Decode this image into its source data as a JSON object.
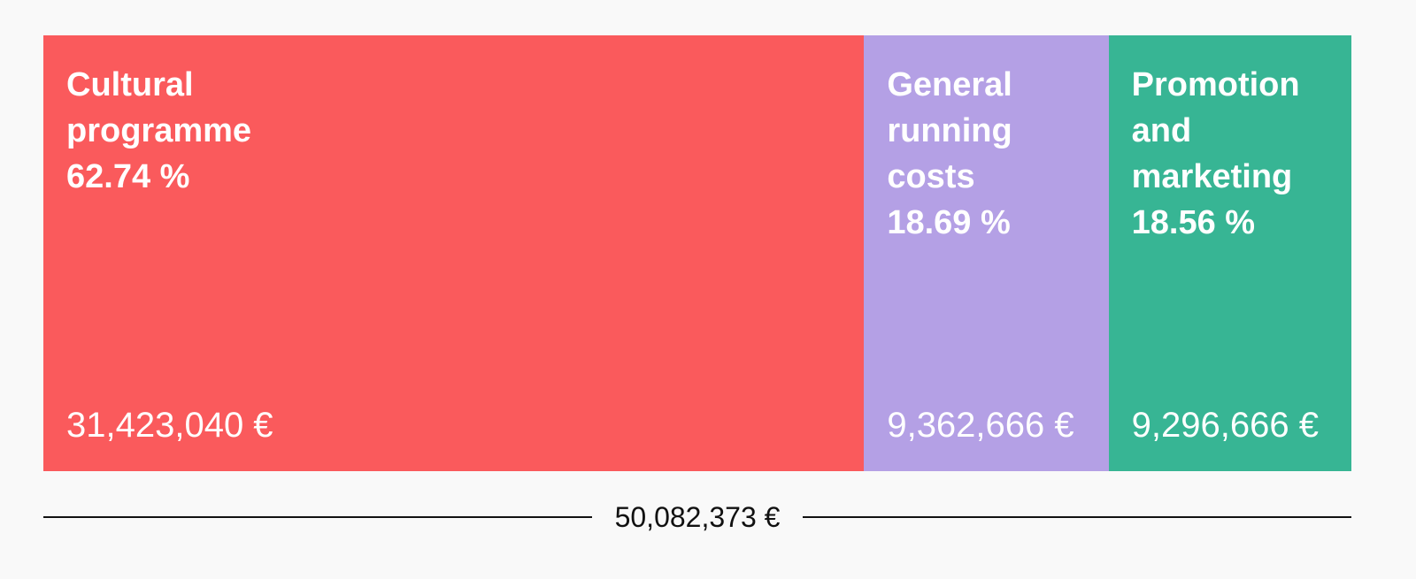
{
  "chart_data": {
    "type": "bar",
    "subtype": "stacked-horizontal-proportional",
    "total_label": "50,082,373 €",
    "total_value": 50082373,
    "segments": [
      {
        "name": "Cultural programme",
        "percent_label": "62.74 %",
        "percent": 62.74,
        "amount_label": "31,423,040 €",
        "value": 31423040,
        "color": "#fa5a5c"
      },
      {
        "name": "General running costs",
        "percent_label": "18.69 %",
        "percent": 18.69,
        "amount_label": "9,362,666 €",
        "value": 9362666,
        "color": "#b4a0e5"
      },
      {
        "name": "Promotion and marketing",
        "percent_label": "18.56 %",
        "percent": 18.56,
        "amount_label": "9,296,666 €",
        "value": 9296666,
        "color": "#37b594"
      }
    ]
  }
}
